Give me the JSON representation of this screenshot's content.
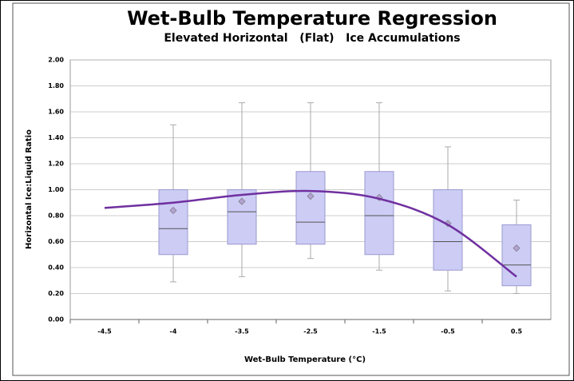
{
  "chart_data": {
    "type": "box",
    "title": "Wet-Bulb Temperature Regression",
    "subtitle": "Elevated Horizontal   (Flat)   Ice Accumulations",
    "x_label": "Wet-Bulb Temperature (°C)",
    "y_label": "Horizontal Ice:Liquid Ratio",
    "categories": [
      "-4.5",
      "-4",
      "-3.5",
      "-2.5",
      "-1.5",
      "-0.5",
      "0.5"
    ],
    "boxes": [
      null,
      {
        "min": 0.29,
        "q1": 0.5,
        "median": 0.7,
        "q3": 1.0,
        "max": 1.5,
        "mean": 0.84
      },
      {
        "min": 0.33,
        "q1": 0.58,
        "median": 0.83,
        "q3": 1.0,
        "max": 1.67,
        "mean": 0.91
      },
      {
        "min": 0.47,
        "q1": 0.58,
        "median": 0.75,
        "q3": 1.14,
        "max": 1.67,
        "mean": 0.95
      },
      {
        "min": 0.38,
        "q1": 0.5,
        "median": 0.8,
        "q3": 1.14,
        "max": 1.67,
        "mean": 0.94
      },
      {
        "min": 0.22,
        "q1": 0.38,
        "median": 0.6,
        "q3": 1.0,
        "max": 1.33,
        "mean": 0.74
      },
      {
        "min": 0.2,
        "q1": 0.26,
        "median": 0.42,
        "q3": 0.73,
        "max": 0.92,
        "mean": 0.55
      }
    ],
    "box_color": "#ccccf5",
    "mean_color": "#b4a2d4",
    "regression": {
      "color": "#7030a0",
      "values": [
        0.86,
        0.9,
        0.96,
        0.99,
        0.93,
        0.73,
        0.33
      ]
    },
    "ylim": [
      0,
      2
    ],
    "yticks": [
      {
        "value": 0,
        "label": "0.00"
      },
      {
        "value": 0.2,
        "label": "0.20"
      },
      {
        "value": 0.4,
        "label": "0.40"
      },
      {
        "value": 0.6,
        "label": "0.60"
      },
      {
        "value": 0.8,
        "label": "0.80"
      },
      {
        "value": 1.0,
        "label": "1.00"
      },
      {
        "value": 1.2,
        "label": "1.20"
      },
      {
        "value": 1.4,
        "label": "1.40"
      },
      {
        "value": 1.6,
        "label": "1.60"
      },
      {
        "value": 1.8,
        "label": "1.80"
      },
      {
        "value": 2.0,
        "label": "2.00"
      }
    ],
    "grid": true
  }
}
